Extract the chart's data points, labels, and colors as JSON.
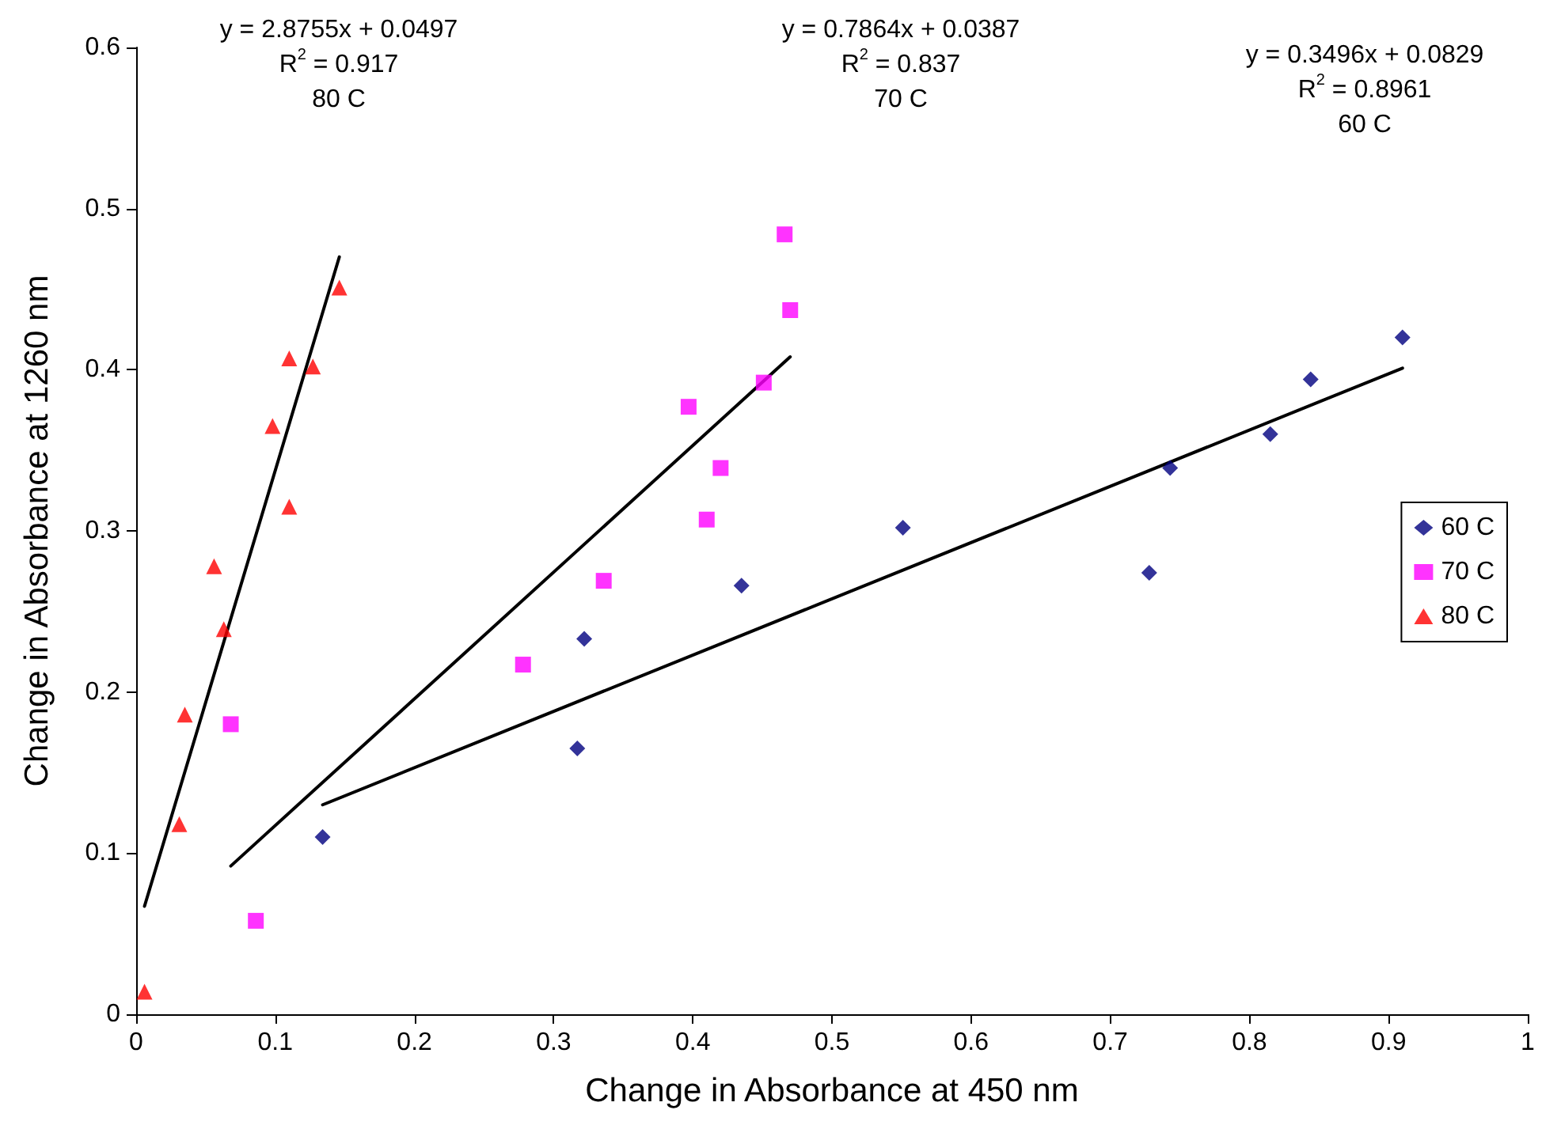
{
  "chart_data": {
    "type": "scatter",
    "xlabel": "Change in Absorbance at 450 nm",
    "ylabel": "Change in Absorbance at 1260 nm",
    "xlim": [
      0,
      1
    ],
    "xticks": [
      0,
      0.1,
      0.2,
      0.3,
      0.4,
      0.5,
      0.6,
      0.7,
      0.8,
      0.9,
      1
    ],
    "ylim": [
      0,
      0.6
    ],
    "yticks": [
      0,
      0.1,
      0.2,
      0.3,
      0.4,
      0.5,
      0.6
    ],
    "grid": false,
    "legend": "right",
    "series": [
      {
        "name": "60 C",
        "color": "#000080",
        "marker": "diamond",
        "x": [
          0.134,
          0.317,
          0.322,
          0.435,
          0.551,
          0.728,
          0.743,
          0.815,
          0.844,
          0.91
        ],
        "values": [
          0.11,
          0.165,
          0.233,
          0.266,
          0.302,
          0.274,
          0.339,
          0.36,
          0.394,
          0.42
        ]
      },
      {
        "name": "70 C",
        "color": "#ff00ff",
        "marker": "square",
        "x": [
          0.068,
          0.086,
          0.278,
          0.336,
          0.397,
          0.41,
          0.42,
          0.451,
          0.466,
          0.47
        ],
        "values": [
          0.18,
          0.058,
          0.217,
          0.269,
          0.377,
          0.307,
          0.339,
          0.392,
          0.484,
          0.437
        ]
      },
      {
        "name": "80 C",
        "color": "#ff0000",
        "marker": "triangle",
        "x": [
          0.006,
          0.031,
          0.035,
          0.056,
          0.063,
          0.098,
          0.11,
          0.11,
          0.127,
          0.146
        ],
        "values": [
          0.014,
          0.118,
          0.186,
          0.278,
          0.239,
          0.365,
          0.315,
          0.407,
          0.402,
          0.451
        ]
      },
      {
        "type": "line",
        "color": "#000000",
        "marker": "none",
        "line_style": "solid",
        "x": [
          0.134,
          0.91
        ],
        "values": [
          0.13,
          0.401
        ]
      },
      {
        "type": "line",
        "color": "#000000",
        "marker": "none",
        "line_style": "solid",
        "x": [
          0.068,
          0.47
        ],
        "values": [
          0.092,
          0.408
        ]
      },
      {
        "type": "line",
        "color": "#000000",
        "marker": "none",
        "line_style": "solid",
        "x": [
          0.006,
          0.146
        ],
        "values": [
          0.067,
          0.47
        ]
      }
    ],
    "annotations": [
      "y = 2.8755x + 0.0497\nR$^{2}$ = 0.917\n80 C",
      "y = 0.7864x + 0.0387\nR$^{2}$ = 0.837\n70 C",
      "y = 0.3496x + 0.0829\nR$^{2}$ = 0.8961\n60 C"
    ]
  }
}
